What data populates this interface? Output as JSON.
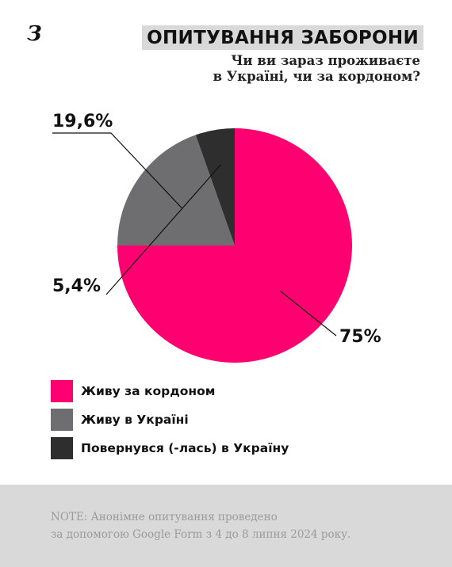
{
  "header": {
    "logo": "З",
    "title": "ОПИТУВАННЯ ЗАБОРОНИ",
    "subtitle_line1": "Чи ви зараз проживаєте",
    "subtitle_line2": "в Україні, чи за кордоном?"
  },
  "chart_data": {
    "type": "pie",
    "title": "",
    "slices": [
      {
        "label": "Живу за кордоном",
        "value": 75,
        "display": "75%",
        "color": "#ff0070"
      },
      {
        "label": "Живу в Україні",
        "value": 19.6,
        "display": "19,6%",
        "color": "#6e6d70"
      },
      {
        "label": "Повернувся (-лась) в Україну",
        "value": 5.4,
        "display": "5,4%",
        "color": "#2e2e2e"
      }
    ],
    "legend_position": "bottom-left"
  },
  "legend": [
    {
      "label": "Живу за кордоном",
      "color": "#ff0070"
    },
    {
      "label": "Живу в Україні",
      "color": "#6e6d70"
    },
    {
      "label": "Повернувся (-лась) в Україну",
      "color": "#2e2e2e"
    }
  ],
  "footer": {
    "note_line1": "NOTE: Анонімне опитування проведено",
    "note_line2": "за допомогою Google Form з 4 до 8 липня 2024 року."
  }
}
